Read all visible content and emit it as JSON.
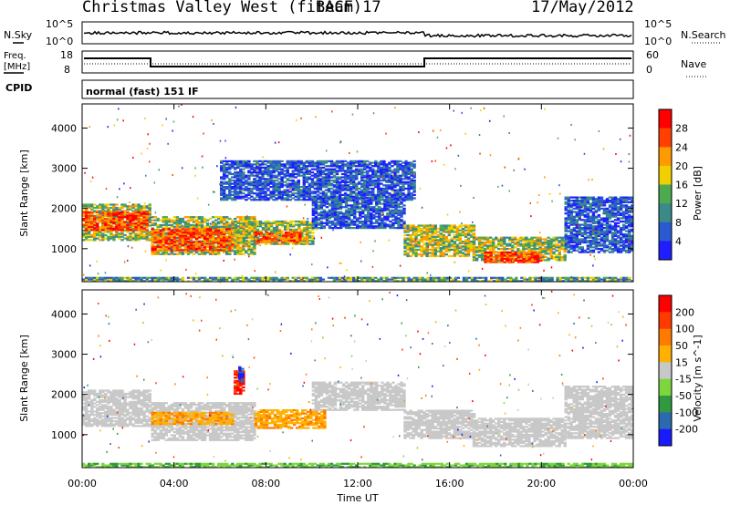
{
  "header": {
    "radar": "Christmas Valley West (fitACF)",
    "beam": "Beam 17",
    "date": "17/May/2012"
  },
  "top_panels": {
    "nsky_label": "N.Sky",
    "nsearch_label": "N.Search",
    "nsky_ticks": [
      "10^5",
      "10^0"
    ],
    "nsky_right_ticks": [
      "10^5",
      "10^0"
    ],
    "freq_label_1": "Freq.",
    "freq_label_2": "[MHz]",
    "freq_ticks": [
      "18",
      "8"
    ],
    "nave_label": "Nave",
    "nave_ticks": [
      "60",
      "0"
    ],
    "cpid_label": "CPID",
    "cpid_text": "normal (fast) 151 IF"
  },
  "chart_data": [
    {
      "type": "heatmap",
      "name": "power-panel",
      "xlabel": "",
      "ylabel": "Slant Range [km]",
      "x_range_hours": [
        0,
        24
      ],
      "ylim": [
        180,
        4600
      ],
      "y_ticks": [
        1000,
        2000,
        3000,
        4000
      ],
      "colorbar": {
        "label": "Power [dB]",
        "ticks": [
          "4",
          "8",
          "12",
          "16",
          "20",
          "24",
          "28"
        ],
        "colors": [
          "#1e1eff",
          "#2a5ad0",
          "#3a8a8a",
          "#4faa4f",
          "#f0d000",
          "#ff9a00",
          "#ff4000",
          "#ff0000"
        ]
      },
      "bands": [
        {
          "t0": 0.0,
          "t1": 3.0,
          "r0": 1200,
          "r1": 2100,
          "level": "mid"
        },
        {
          "t0": 0.0,
          "t1": 2.8,
          "r0": 1450,
          "r1": 1900,
          "level": "high"
        },
        {
          "t0": 3.0,
          "t1": 7.5,
          "r0": 850,
          "r1": 1800,
          "level": "mid"
        },
        {
          "t0": 3.0,
          "t1": 6.5,
          "r0": 950,
          "r1": 1500,
          "level": "high"
        },
        {
          "t0": 6.5,
          "t1": 10.0,
          "r0": 1100,
          "r1": 1700,
          "level": "mid"
        },
        {
          "t0": 7.5,
          "t1": 9.5,
          "r0": 1150,
          "r1": 1400,
          "level": "high"
        },
        {
          "t0": 10.0,
          "t1": 14.0,
          "r0": 1500,
          "r1": 2300,
          "level": "low"
        },
        {
          "t0": 14.0,
          "t1": 17.0,
          "r0": 800,
          "r1": 1600,
          "level": "mid"
        },
        {
          "t0": 17.0,
          "t1": 21.0,
          "r0": 700,
          "r1": 1300,
          "level": "mid"
        },
        {
          "t0": 17.5,
          "t1": 20.0,
          "r0": 650,
          "r1": 900,
          "level": "high"
        },
        {
          "t0": 6.0,
          "t1": 14.5,
          "r0": 2200,
          "r1": 3200,
          "level": "low"
        },
        {
          "t0": 21.0,
          "t1": 24.0,
          "r0": 900,
          "r1": 2300,
          "level": "low"
        },
        {
          "t0": 0.0,
          "t1": 24.0,
          "r0": 180,
          "r1": 300,
          "level": "ground"
        }
      ]
    },
    {
      "type": "heatmap",
      "name": "velocity-panel",
      "xlabel": "Time UT",
      "ylabel": "Slant Range [km]",
      "x_range_hours": [
        0,
        24
      ],
      "x_ticks": [
        "00:00",
        "04:00",
        "08:00",
        "12:00",
        "16:00",
        "20:00",
        "00:00"
      ],
      "ylim": [
        180,
        4600
      ],
      "y_ticks": [
        1000,
        2000,
        3000,
        4000
      ],
      "colorbar": {
        "label": "Velocity [m s^-1]",
        "ticks": [
          "200",
          "100",
          "50",
          "15",
          "-15",
          "-50",
          "-100",
          "-200"
        ],
        "colors": [
          "#1a1aff",
          "#2a6ab0",
          "#2f9a3f",
          "#7ed63f",
          "#c8c8c8",
          "#ffb000",
          "#ff7a00",
          "#ff3a00",
          "#ff0000"
        ]
      },
      "bands": [
        {
          "t0": 0.0,
          "t1": 3.0,
          "r0": 1200,
          "r1": 2100,
          "level": "gray"
        },
        {
          "t0": 3.0,
          "t1": 7.5,
          "r0": 850,
          "r1": 1800,
          "level": "gray"
        },
        {
          "t0": 3.0,
          "t1": 6.5,
          "r0": 1250,
          "r1": 1550,
          "level": "orange"
        },
        {
          "t0": 7.5,
          "t1": 10.5,
          "r0": 1150,
          "r1": 1600,
          "level": "orange"
        },
        {
          "t0": 6.6,
          "t1": 7.0,
          "r0": 2000,
          "r1": 2600,
          "level": "red"
        },
        {
          "t0": 6.8,
          "t1": 7.0,
          "r0": 2300,
          "r1": 2700,
          "level": "blue"
        },
        {
          "t0": 10.0,
          "t1": 14.0,
          "r0": 1600,
          "r1": 2300,
          "level": "gray"
        },
        {
          "t0": 14.0,
          "t1": 17.0,
          "r0": 900,
          "r1": 1600,
          "level": "gray"
        },
        {
          "t0": 17.0,
          "t1": 21.0,
          "r0": 700,
          "r1": 1400,
          "level": "gray"
        },
        {
          "t0": 21.0,
          "t1": 24.0,
          "r0": 900,
          "r1": 2200,
          "level": "gray"
        },
        {
          "t0": 0.0,
          "t1": 24.0,
          "r0": 180,
          "r1": 300,
          "level": "green"
        }
      ]
    }
  ]
}
